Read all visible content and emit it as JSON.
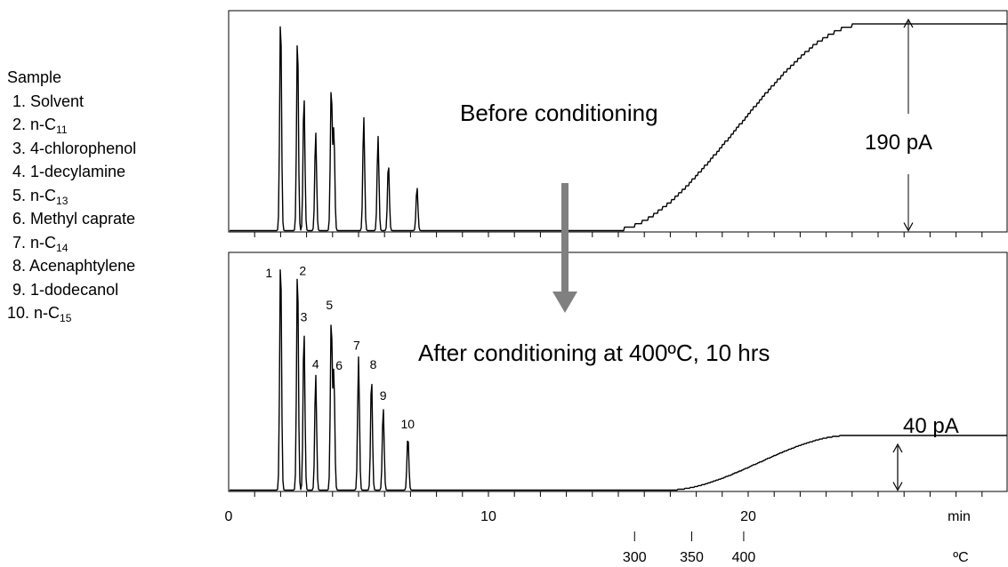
{
  "legend": {
    "title": "Sample",
    "items": [
      {
        "num": "1.",
        "text": "Solvent",
        "sub": ""
      },
      {
        "num": "2.",
        "text": "n-C",
        "sub": "11"
      },
      {
        "num": "3.",
        "text": "4-chlorophenol",
        "sub": ""
      },
      {
        "num": "4.",
        "text": "1-decylamine",
        "sub": ""
      },
      {
        "num": "5.",
        "text": "n-C",
        "sub": "13"
      },
      {
        "num": "6.",
        "text": "Methyl caprate",
        "sub": ""
      },
      {
        "num": "7.",
        "text": "n-C",
        "sub": "14"
      },
      {
        "num": "8.",
        "text": "Acenaphtylene",
        "sub": ""
      },
      {
        "num": "9.",
        "text": "1-dodecanol",
        "sub": ""
      },
      {
        "num": "10.",
        "text": "n-C",
        "sub": "15"
      }
    ]
  },
  "chart_data": {
    "type": "line",
    "x_axis": {
      "range": [
        0,
        30
      ],
      "tick_labels": [
        "0",
        "10",
        "20"
      ],
      "tick_values": [
        0,
        10,
        20
      ],
      "unit_label": "min",
      "temperature_scale": {
        "labels": [
          "300",
          "350",
          "400"
        ],
        "at_minutes": [
          15.9,
          18.1,
          20.1
        ],
        "unit_label": "ºC"
      }
    },
    "panels": [
      {
        "annotation": "Before conditioning",
        "span_label": "190 pA",
        "baseline_rise": {
          "start_min": 14.7,
          "end_min": 24.5,
          "level": 0.94
        },
        "peaks": [
          {
            "t": 2.0,
            "h": 1.0
          },
          {
            "t": 2.65,
            "h": 0.9
          },
          {
            "t": 2.9,
            "h": 0.62
          },
          {
            "t": 3.35,
            "h": 0.45
          },
          {
            "t": 3.95,
            "h": 0.66
          },
          {
            "t": 4.05,
            "h": 0.46
          },
          {
            "t": 5.2,
            "h": 0.52
          },
          {
            "t": 5.75,
            "h": 0.43
          },
          {
            "t": 6.15,
            "h": 0.31
          },
          {
            "t": 7.25,
            "h": 0.2
          }
        ]
      },
      {
        "annotation": "After conditioning  at 400ºC, 10 hrs",
        "span_label": "40 pA",
        "baseline_rise": {
          "start_min": 16.9,
          "end_min": 23.9,
          "level": 0.23
        },
        "peaks": [
          {
            "t": 2.0,
            "h": 1.0,
            "label": "1"
          },
          {
            "t": 2.65,
            "h": 0.95,
            "label": "2"
          },
          {
            "t": 2.9,
            "h": 0.68,
            "label": "3"
          },
          {
            "t": 3.35,
            "h": 0.49,
            "label": "4"
          },
          {
            "t": 3.95,
            "h": 0.73,
            "label": "5"
          },
          {
            "t": 4.05,
            "h": 0.5,
            "label": "6"
          },
          {
            "t": 5.0,
            "h": 0.56,
            "label": "7"
          },
          {
            "t": 5.5,
            "h": 0.48,
            "label": "8"
          },
          {
            "t": 5.95,
            "h": 0.35,
            "label": "9"
          },
          {
            "t": 6.9,
            "h": 0.23,
            "label": "10"
          }
        ]
      }
    ]
  }
}
